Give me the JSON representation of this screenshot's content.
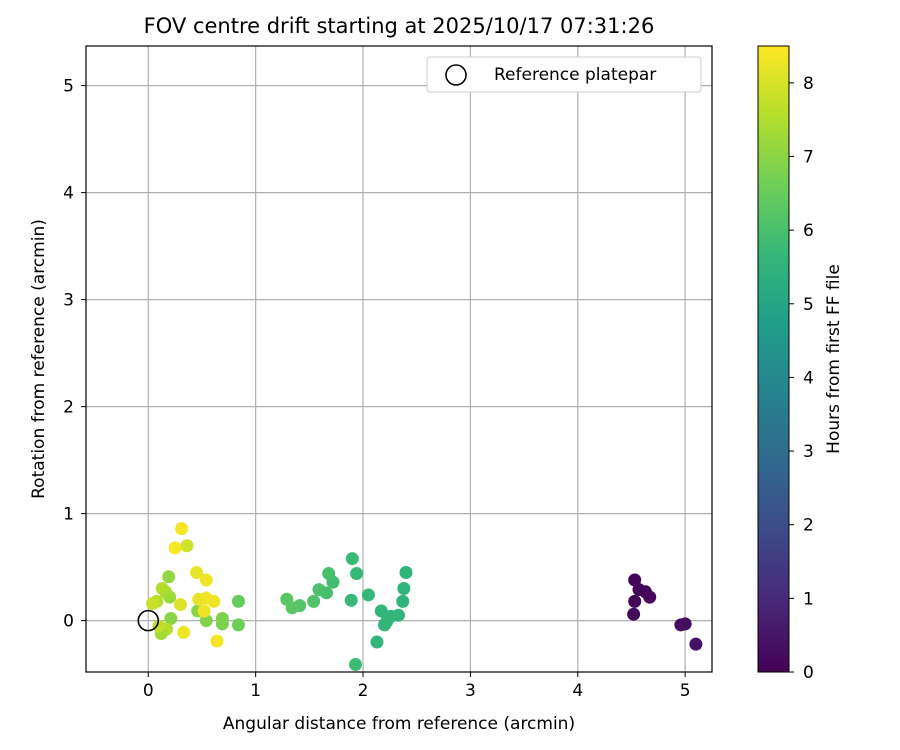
{
  "chart_data": {
    "type": "scatter",
    "title": "FOV centre drift starting at 2025/10/17 07:31:26",
    "xlabel": "Angular distance from reference (arcmin)",
    "ylabel": "Rotation from reference (arcmin)",
    "xlim": [
      -0.58,
      5.25
    ],
    "ylim": [
      -0.48,
      5.37
    ],
    "xticks": [
      "0",
      "1",
      "2",
      "3",
      "4",
      "5"
    ],
    "yticks": [
      "0",
      "1",
      "2",
      "3",
      "4",
      "5"
    ],
    "grid": true,
    "legend": {
      "position": "top-right",
      "entries": [
        "Reference platepar"
      ]
    },
    "colorbar": {
      "label": "Hours from first FF file",
      "range": [
        0,
        8.5
      ],
      "ticks": [
        "0",
        "1",
        "2",
        "3",
        "4",
        "5",
        "6",
        "7",
        "8"
      ],
      "colormap": "viridis"
    },
    "reference_point": {
      "x": 0,
      "y": 0
    },
    "points": [
      {
        "x": 4.53,
        "y": 0.38,
        "c": 0.1
      },
      {
        "x": 4.53,
        "y": 0.18,
        "c": 0.15
      },
      {
        "x": 4.52,
        "y": 0.06,
        "c": 0.2
      },
      {
        "x": 4.57,
        "y": 0.29,
        "c": 0.1
      },
      {
        "x": 4.63,
        "y": 0.27,
        "c": 0.1
      },
      {
        "x": 4.67,
        "y": 0.22,
        "c": 0.15
      },
      {
        "x": 4.96,
        "y": -0.04,
        "c": 0.3
      },
      {
        "x": 5.0,
        "y": -0.03,
        "c": 0.3
      },
      {
        "x": 5.1,
        "y": -0.22,
        "c": 0.4
      },
      {
        "x": 2.4,
        "y": 0.45,
        "c": 5.5
      },
      {
        "x": 2.38,
        "y": 0.3,
        "c": 5.5
      },
      {
        "x": 2.37,
        "y": 0.18,
        "c": 5.5
      },
      {
        "x": 2.33,
        "y": 0.05,
        "c": 5.5
      },
      {
        "x": 2.26,
        "y": 0.04,
        "c": 5.55
      },
      {
        "x": 2.22,
        "y": -0.01,
        "c": 5.55
      },
      {
        "x": 2.2,
        "y": -0.04,
        "c": 5.6
      },
      {
        "x": 2.17,
        "y": 0.09,
        "c": 5.6
      },
      {
        "x": 2.13,
        "y": -0.2,
        "c": 5.6
      },
      {
        "x": 2.05,
        "y": 0.24,
        "c": 5.65
      },
      {
        "x": 1.94,
        "y": 0.44,
        "c": 5.7
      },
      {
        "x": 1.9,
        "y": 0.58,
        "c": 5.75
      },
      {
        "x": 1.89,
        "y": 0.19,
        "c": 5.7
      },
      {
        "x": 1.93,
        "y": -0.41,
        "c": 5.8
      },
      {
        "x": 1.72,
        "y": 0.36,
        "c": 5.9
      },
      {
        "x": 1.68,
        "y": 0.44,
        "c": 6.0
      },
      {
        "x": 1.66,
        "y": 0.26,
        "c": 6.0
      },
      {
        "x": 1.59,
        "y": 0.29,
        "c": 6.05
      },
      {
        "x": 1.54,
        "y": 0.18,
        "c": 6.1
      },
      {
        "x": 1.41,
        "y": 0.14,
        "c": 6.2
      },
      {
        "x": 1.34,
        "y": 0.12,
        "c": 6.3
      },
      {
        "x": 1.29,
        "y": 0.2,
        "c": 6.3
      },
      {
        "x": 0.84,
        "y": 0.18,
        "c": 6.5
      },
      {
        "x": 0.84,
        "y": -0.04,
        "c": 6.6
      },
      {
        "x": 0.69,
        "y": 0.02,
        "c": 6.8
      },
      {
        "x": 0.69,
        "y": -0.03,
        "c": 6.8
      },
      {
        "x": 0.54,
        "y": 0.0,
        "c": 6.9
      },
      {
        "x": 0.46,
        "y": 0.09,
        "c": 7.0
      },
      {
        "x": 0.21,
        "y": 0.02,
        "c": 7.0
      },
      {
        "x": 0.19,
        "y": 0.41,
        "c": 7.1
      },
      {
        "x": 0.2,
        "y": 0.22,
        "c": 7.2
      },
      {
        "x": 0.16,
        "y": 0.27,
        "c": 7.3
      },
      {
        "x": 0.13,
        "y": 0.3,
        "c": 7.5
      },
      {
        "x": 0.08,
        "y": 0.18,
        "c": 7.6
      },
      {
        "x": 0.04,
        "y": 0.16,
        "c": 7.8
      },
      {
        "x": 0.17,
        "y": -0.08,
        "c": 7.6
      },
      {
        "x": 0.12,
        "y": -0.12,
        "c": 7.3
      },
      {
        "x": 0.1,
        "y": -0.05,
        "c": 7.7
      },
      {
        "x": 0.36,
        "y": 0.7,
        "c": 7.9
      },
      {
        "x": 0.3,
        "y": 0.15,
        "c": 8.1
      },
      {
        "x": 0.33,
        "y": -0.11,
        "c": 8.3
      },
      {
        "x": 0.45,
        "y": 0.45,
        "c": 8.2
      },
      {
        "x": 0.47,
        "y": 0.2,
        "c": 8.2
      },
      {
        "x": 0.52,
        "y": 0.09,
        "c": 8.3
      },
      {
        "x": 0.54,
        "y": 0.21,
        "c": 8.3
      },
      {
        "x": 0.54,
        "y": 0.38,
        "c": 8.3
      },
      {
        "x": 0.61,
        "y": 0.18,
        "c": 8.3
      },
      {
        "x": 0.64,
        "y": -0.19,
        "c": 8.35
      },
      {
        "x": 0.25,
        "y": 0.68,
        "c": 8.4
      },
      {
        "x": 0.31,
        "y": 0.86,
        "c": 8.4
      }
    ]
  }
}
